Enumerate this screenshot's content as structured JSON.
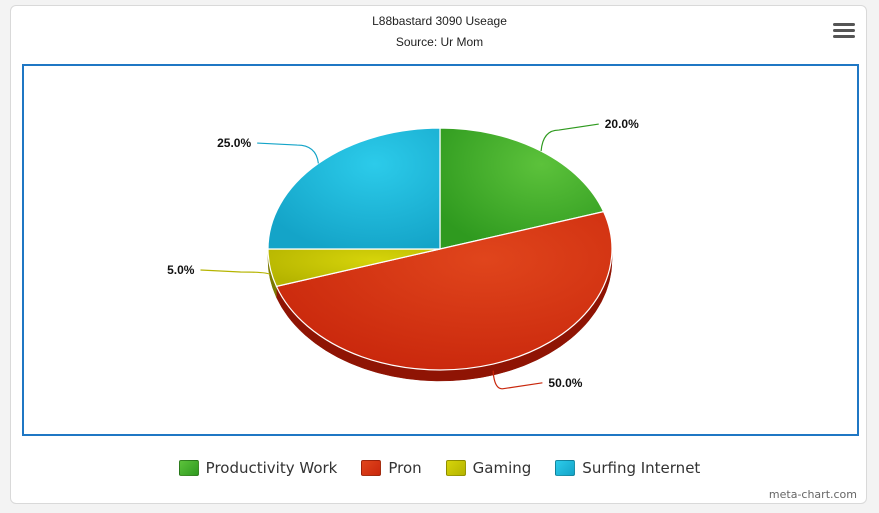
{
  "chart_data": {
    "type": "pie",
    "title": "L88bastard 3090 Useage",
    "subtitle": "Source: Ur Mom",
    "legend_position": "bottom",
    "slices": [
      {
        "name": "Productivity Work",
        "value": 20.0,
        "label": "20.0%",
        "color": "#2f9a1f",
        "light": "#5cc23b",
        "dark": "#1b6b10"
      },
      {
        "name": "Pron",
        "value": 50.0,
        "label": "50.0%",
        "color": "#c9270c",
        "light": "#e0451c",
        "dark": "#8f1404"
      },
      {
        "name": "Gaming",
        "value": 5.0,
        "label": "5.0%",
        "color": "#b5b400",
        "light": "#d6d40a",
        "dark": "#7b7900"
      },
      {
        "name": "Surfing Internet",
        "value": 25.0,
        "label": "25.0%",
        "color": "#14a4c8",
        "light": "#2ccbea",
        "dark": "#0b7593"
      }
    ]
  },
  "ui": {
    "menu_icon": "hamburger-menu-icon",
    "credit": "meta-chart.com"
  }
}
